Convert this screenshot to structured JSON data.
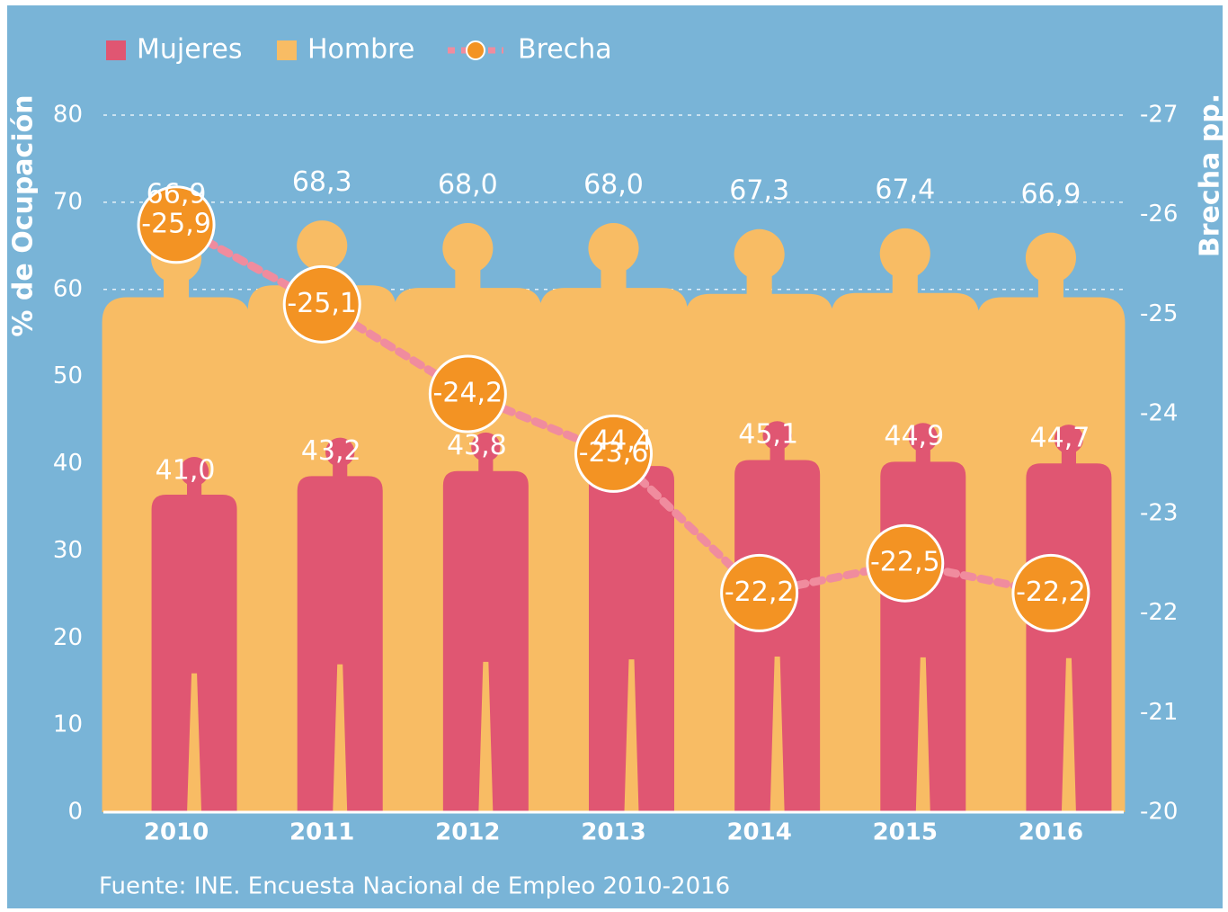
{
  "chart_data": {
    "type": "bar",
    "legend": "top-left",
    "ylabel": "% de Ocupación",
    "y2label": "Brecha pp.",
    "source": "Fuente: INE. Encuesta Nacional de Empleo 2010-2016",
    "categories": [
      "2010",
      "2011",
      "2012",
      "2013",
      "2014",
      "2015",
      "2016"
    ],
    "series": [
      {
        "name": "Hombre",
        "color": "#f8bc64",
        "type": "bar",
        "values": [
          66.9,
          68.3,
          68.0,
          68.0,
          67.3,
          67.4,
          66.9
        ],
        "value_labels": [
          "66,9",
          "68,3",
          "68,0",
          "68,0",
          "67,3",
          "67,4",
          "66,9"
        ]
      },
      {
        "name": "Mujeres",
        "color": "#e05672",
        "type": "bar",
        "values": [
          41.0,
          43.2,
          43.8,
          44.4,
          45.1,
          44.9,
          44.7
        ],
        "value_labels": [
          "41,0",
          "43,2",
          "43,8",
          "44,4",
          "45,1",
          "44,9",
          "44,7"
        ]
      },
      {
        "name": "Brecha",
        "color": "#f39323",
        "line_color": "#f08c9e",
        "type": "line",
        "axis": "y2",
        "values": [
          -25.9,
          -25.1,
          -24.2,
          -23.6,
          -22.2,
          -22.5,
          -22.2
        ],
        "value_labels": [
          "-25,9",
          "-25,1",
          "-24,2",
          "-23,6",
          "-22,2",
          "-22,5",
          "-22,2"
        ]
      }
    ],
    "ylim": [
      0,
      80
    ],
    "yticks": [
      0,
      10,
      20,
      30,
      40,
      50,
      60,
      70,
      80
    ],
    "y2lim": [
      -20,
      -27
    ],
    "y2ticks": [
      -20,
      -21,
      -22,
      -23,
      -24,
      -25,
      -26,
      -27
    ],
    "grid": true
  }
}
